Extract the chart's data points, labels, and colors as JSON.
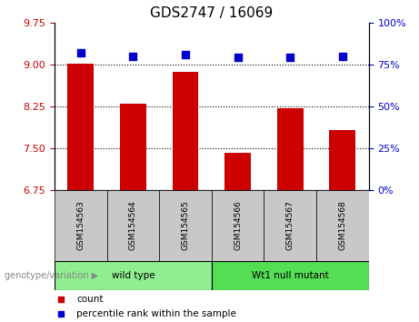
{
  "title": "GDS2747 / 16069",
  "samples": [
    "GSM154563",
    "GSM154564",
    "GSM154565",
    "GSM154566",
    "GSM154567",
    "GSM154568"
  ],
  "bar_values": [
    9.02,
    8.3,
    8.87,
    7.42,
    8.22,
    7.82
  ],
  "percentile_values": [
    82,
    80,
    81,
    79,
    79,
    80
  ],
  "ylim_left": [
    6.75,
    9.75
  ],
  "ylim_right": [
    0,
    100
  ],
  "left_ticks": [
    6.75,
    7.5,
    8.25,
    9.0,
    9.75
  ],
  "right_ticks": [
    0,
    25,
    50,
    75,
    100
  ],
  "bar_color": "#cc0000",
  "dot_color": "#0000cc",
  "grid_lines": [
    9.0,
    8.25,
    7.5
  ],
  "groups": [
    {
      "label": "wild type",
      "indices": [
        0,
        1,
        2
      ],
      "color": "#90ee90"
    },
    {
      "label": "Wt1 null mutant",
      "indices": [
        3,
        4,
        5
      ],
      "color": "#55dd55"
    }
  ],
  "genotype_label": "genotype/variation",
  "legend_count_label": "count",
  "legend_percentile_label": "percentile rank within the sample",
  "bg_color": "#ffffff",
  "plot_bg_color": "#ffffff",
  "tick_label_color_left": "#cc0000",
  "tick_label_color_right": "#0000cc",
  "title_fontsize": 11,
  "tick_fontsize": 8,
  "sample_box_color": "#c8c8c8",
  "dot_size": 28,
  "bar_width": 0.5
}
